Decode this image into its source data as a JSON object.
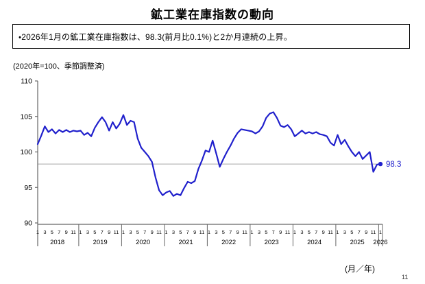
{
  "title": "鉱工業在庫指数の動向",
  "headline": "・2026年1月の鉱工業在庫指数は、98.3(前月比0.1%)と2か月連続の上昇。",
  "page_number": "11",
  "chart_data": {
    "type": "line",
    "title": "鉱工業在庫指数の動向",
    "unit_note": "(2020年=100、季節調整済)",
    "x_axis_label": "(月／年)",
    "ylim": [
      90,
      110
    ],
    "yticks": [
      90,
      95,
      100,
      105,
      110
    ],
    "grid": "off",
    "reference_line_value": 98.3,
    "reference_line_color": "#a8a8a8",
    "line_color": "#2020cc",
    "axis_color": "#666666",
    "last_value_label": "98.3",
    "month_ticks": [
      1,
      3,
      5,
      7,
      9,
      11
    ],
    "x_years": [
      {
        "label": "2018",
        "n_months": 12
      },
      {
        "label": "2019",
        "n_months": 12
      },
      {
        "label": "2020",
        "n_months": 12
      },
      {
        "label": "2021",
        "n_months": 12
      },
      {
        "label": "2022",
        "n_months": 12
      },
      {
        "label": "2023",
        "n_months": 12
      },
      {
        "label": "2024",
        "n_months": 12
      },
      {
        "label": "2025",
        "n_months": 12
      },
      {
        "label": "2026",
        "n_months": 1
      }
    ],
    "series": [
      {
        "name": "鉱工業在庫指数(季節調整済)",
        "start": "2018-01",
        "end": "2026-01",
        "values": [
          101.1,
          102.3,
          103.6,
          102.8,
          103.2,
          102.6,
          103.1,
          102.8,
          103.1,
          102.8,
          103.0,
          102.9,
          103.0,
          102.4,
          102.7,
          102.2,
          103.4,
          104.2,
          104.9,
          104.2,
          103.0,
          104.2,
          103.3,
          104.0,
          105.2,
          103.8,
          104.4,
          104.2,
          101.9,
          100.6,
          100.0,
          99.4,
          98.6,
          96.4,
          94.6,
          93.9,
          94.3,
          94.5,
          93.8,
          94.1,
          93.9,
          94.9,
          95.8,
          95.6,
          95.9,
          97.6,
          98.8,
          100.2,
          100.0,
          101.6,
          99.8,
          97.9,
          99.0,
          100.0,
          100.9,
          101.9,
          102.7,
          103.2,
          103.1,
          103.0,
          102.9,
          102.6,
          102.9,
          103.6,
          104.8,
          105.4,
          105.6,
          104.8,
          103.7,
          103.5,
          103.8,
          103.2,
          102.2,
          102.6,
          103.0,
          102.6,
          102.8,
          102.6,
          102.8,
          102.5,
          102.4,
          102.2,
          101.3,
          100.9,
          102.4,
          101.1,
          101.7,
          100.8,
          100.0,
          99.4,
          100.0,
          99.0,
          99.5,
          100.0,
          97.2,
          98.2,
          98.3
        ]
      }
    ]
  }
}
